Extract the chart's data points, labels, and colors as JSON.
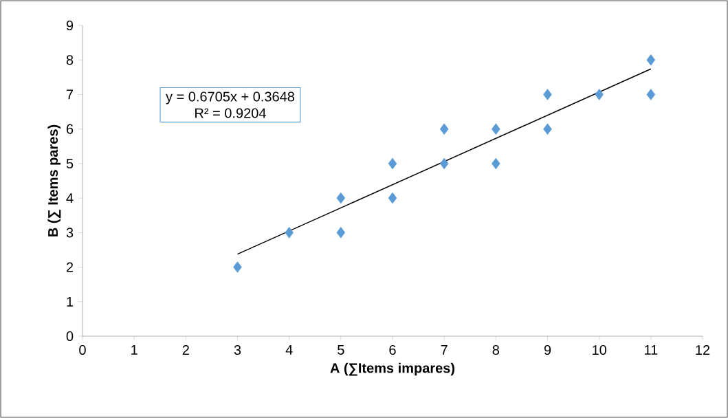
{
  "chart_data": {
    "type": "scatter",
    "xlabel": "A (∑Items impares)",
    "ylabel": "B (∑ Items pares)",
    "xlim": [
      0,
      12
    ],
    "ylim": [
      0,
      9
    ],
    "xticks": [
      0,
      1,
      2,
      3,
      4,
      5,
      6,
      7,
      8,
      9,
      10,
      11,
      12
    ],
    "yticks": [
      0,
      1,
      2,
      3,
      4,
      5,
      6,
      7,
      8,
      9
    ],
    "annotations": [
      "y = 0.6705x + 0.3648",
      "R² = 0.9204"
    ],
    "series": [
      {
        "type": "scatter",
        "color": "#5b9bd5",
        "marker": "diamond",
        "x": [
          3,
          4,
          5,
          5,
          6,
          6,
          7,
          7,
          8,
          8,
          9,
          9,
          10,
          11,
          11
        ],
        "values": [
          2,
          3,
          4,
          3,
          5,
          4,
          6,
          5,
          6,
          5,
          7,
          6,
          7,
          8,
          7
        ]
      },
      {
        "type": "line",
        "color": "#000000",
        "marker": "none",
        "x": [
          3,
          11
        ],
        "values": [
          2.376,
          7.74
        ]
      }
    ]
  }
}
